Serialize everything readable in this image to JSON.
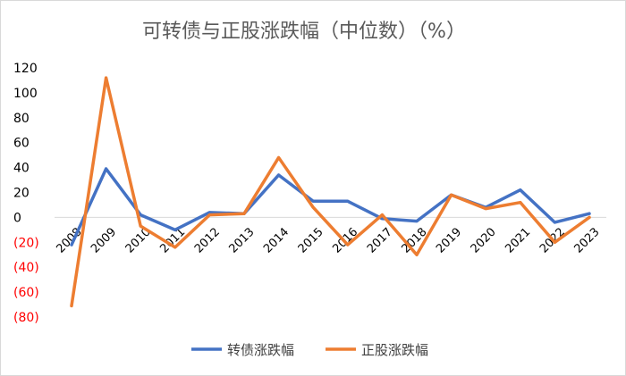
{
  "chart_data": {
    "type": "line",
    "title": "可转债与正股涨跌幅（中位数）（%）",
    "x": [
      "2008",
      "2009",
      "2010",
      "2011",
      "2012",
      "2013",
      "2014",
      "2015",
      "2016",
      "2017",
      "2018",
      "2019",
      "2020",
      "2021",
      "2022",
      "2023"
    ],
    "series": [
      {
        "name": "转债涨跌幅",
        "color": "#4472c4",
        "values": [
          -22,
          39,
          2,
          -10,
          4,
          3,
          34,
          13,
          13,
          -1,
          -3,
          18,
          8,
          22,
          -4,
          3
        ]
      },
      {
        "name": "正股涨跌幅",
        "color": "#ed7d31",
        "values": [
          -71,
          112,
          -7,
          -24,
          2,
          3,
          48,
          8,
          -22,
          2,
          -30,
          18,
          7,
          12,
          -20,
          0
        ]
      }
    ],
    "ylim": [
      -80,
      120
    ],
    "yticks": [
      120,
      100,
      80,
      60,
      40,
      20,
      0,
      -20,
      -40,
      -60,
      -80
    ],
    "ytick_labels": [
      "120",
      "100",
      "80",
      "60",
      "40",
      "20",
      "0",
      "(20)",
      "(40)",
      "(60)",
      "(80)"
    ],
    "negative_label_color": "#ff0000",
    "grid": false,
    "legend": "bottom"
  }
}
